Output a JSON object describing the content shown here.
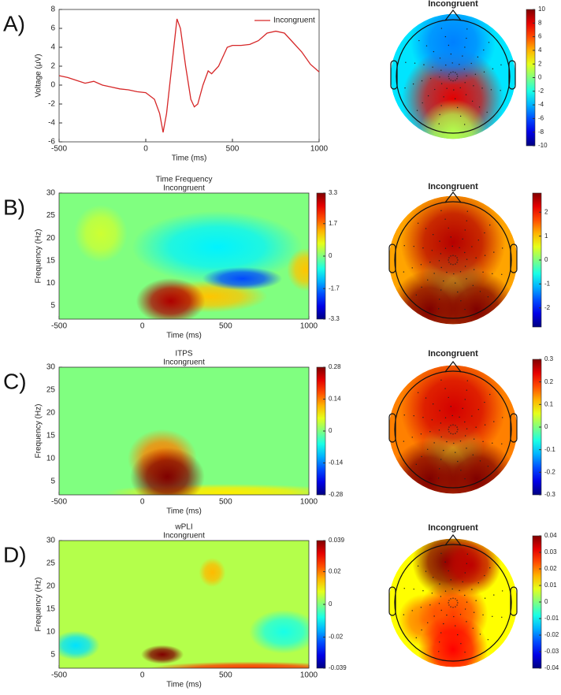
{
  "chart_data": [
    {
      "type": "line",
      "panel": "A)",
      "xlabel": "Time (ms)",
      "ylabel": "Voltage (μV)",
      "x": [
        -500,
        -450,
        -400,
        -350,
        -300,
        -250,
        -200,
        -150,
        -100,
        -50,
        0,
        50,
        80,
        100,
        120,
        150,
        180,
        200,
        230,
        260,
        280,
        300,
        330,
        360,
        380,
        420,
        470,
        500,
        550,
        600,
        650,
        700,
        750,
        800,
        850,
        900,
        950,
        1000
      ],
      "series": [
        {
          "name": "Incongruent",
          "color": "#d62728",
          "values": [
            1,
            0.8,
            0.5,
            0.2,
            0.4,
            0,
            -0.2,
            -0.4,
            -0.5,
            -0.7,
            -0.8,
            -1.5,
            -3,
            -5,
            -3,
            2,
            7,
            6,
            2,
            -1.5,
            -2.3,
            -2,
            0,
            1.5,
            1.2,
            2,
            4,
            4.2,
            4.2,
            4.3,
            4.7,
            5.5,
            5.7,
            5.5,
            4.5,
            3.5,
            2.2,
            1.4
          ]
        }
      ],
      "xlim": [
        -500,
        1000
      ],
      "xticks": [
        -500,
        0,
        500,
        1000
      ],
      "ylim": [
        -6,
        8
      ],
      "yticks": [
        -6,
        -4,
        -2,
        0,
        2,
        4,
        6,
        8
      ],
      "legend": "top-right"
    },
    {
      "type": "topoplot",
      "title": "Incongruent",
      "clim": [
        -10,
        10
      ],
      "cticks": [
        -10,
        -8,
        -6,
        -4,
        -2,
        0,
        2,
        4,
        6,
        8,
        10
      ],
      "background": -3,
      "regions": [
        {
          "x": 0,
          "y": 0.4,
          "r": 0.6,
          "value": 8
        },
        {
          "x": 0,
          "y": -0.6,
          "r": 0.5,
          "value": -5
        },
        {
          "x": 0,
          "y": 1,
          "r": 0.4,
          "value": 1
        }
      ]
    },
    {
      "type": "heatmap",
      "panel": "B)",
      "title": "Time Frequency",
      "subtitle": "Incongruent",
      "xlabel": "Time (ms)",
      "ylabel": "Frequency (Hz)",
      "xlim": [
        -500,
        1000
      ],
      "xticks": [
        -500,
        0,
        500,
        1000
      ],
      "ylim": [
        2,
        30
      ],
      "yticks": [
        5,
        10,
        15,
        20,
        25,
        30
      ],
      "clim": [
        -3.3,
        3.3
      ],
      "cticks": [
        -3.3,
        -1.7,
        0,
        1.7,
        3.3
      ],
      "background": 0,
      "regions": [
        {
          "x": -250,
          "y": 21,
          "rx": 100,
          "ry": 4,
          "value": 0.5
        },
        {
          "x": 450,
          "y": 18,
          "rx": 320,
          "ry": 5,
          "value": -0.9
        },
        {
          "x": 400,
          "y": 7,
          "rx": 220,
          "ry": 2.2,
          "value": 1.2
        },
        {
          "x": 600,
          "y": 11,
          "rx": 150,
          "ry": 1.6,
          "value": -2
        },
        {
          "x": 980,
          "y": 13,
          "rx": 70,
          "ry": 3,
          "value": 1.2
        },
        {
          "x": 170,
          "y": 6,
          "rx": 130,
          "ry": 3.2,
          "value": 3
        }
      ]
    },
    {
      "type": "topoplot",
      "title": "Incongruent",
      "clim": [
        -2.8,
        2.8
      ],
      "cticks": [
        -2,
        -1,
        0,
        1,
        2
      ],
      "background": 1.2,
      "regions": [
        {
          "x": 0,
          "y": 0.25,
          "r": 0.35,
          "value": 0.4
        },
        {
          "x": 0,
          "y": -0.3,
          "r": 0.6,
          "value": 2.5
        },
        {
          "x": -0.4,
          "y": 0.85,
          "r": 0.45,
          "value": 2.8
        },
        {
          "x": 0.4,
          "y": 0.85,
          "r": 0.45,
          "value": 2.8
        }
      ]
    },
    {
      "type": "heatmap",
      "panel": "C)",
      "title": "ITPS",
      "subtitle": "Incongruent",
      "xlabel": "Time (ms)",
      "ylabel": "Frequency (Hz)",
      "xlim": [
        -500,
        1000
      ],
      "xticks": [
        -500,
        0,
        500,
        1000
      ],
      "ylim": [
        2,
        30
      ],
      "yticks": [
        5,
        10,
        15,
        20,
        25,
        30
      ],
      "clim": [
        -0.28,
        0.28
      ],
      "cticks": [
        -0.28,
        -0.14,
        0,
        0.14,
        0.28
      ],
      "background": 0,
      "regions": [
        {
          "x": 500,
          "y": 2.5,
          "rx": 450,
          "ry": 1.2,
          "value": 0.08
        },
        {
          "x": 120,
          "y": 10,
          "rx": 130,
          "ry": 4,
          "value": 0.14
        },
        {
          "x": 150,
          "y": 6,
          "rx": 140,
          "ry": 4,
          "value": 0.28
        }
      ]
    },
    {
      "type": "topoplot",
      "title": "Incongruent",
      "clim": [
        -0.3,
        0.3
      ],
      "cticks": [
        -0.3,
        -0.2,
        -0.1,
        0,
        0.1,
        0.2,
        0.3
      ],
      "background": 0.15,
      "regions": [
        {
          "x": 0,
          "y": 0.3,
          "r": 0.35,
          "value": 0.05
        },
        {
          "x": 0,
          "y": -0.35,
          "r": 0.6,
          "value": 0.25
        },
        {
          "x": -0.4,
          "y": 0.85,
          "r": 0.45,
          "value": 0.3
        },
        {
          "x": 0.4,
          "y": 0.85,
          "r": 0.45,
          "value": 0.3
        }
      ]
    },
    {
      "type": "heatmap",
      "panel": "D)",
      "title": "wPLI",
      "subtitle": "Incongruent",
      "xlabel": "Time (ms)",
      "ylabel": "Frequency (Hz)",
      "xlim": [
        -500,
        1000
      ],
      "xticks": [
        -500,
        0,
        500,
        1000
      ],
      "ylim": [
        2,
        30
      ],
      "yticks": [
        5,
        10,
        15,
        20,
        25,
        30
      ],
      "clim": [
        -0.039,
        0.039
      ],
      "cticks": [
        -0.039,
        -0.02,
        0,
        0.02,
        0.039
      ],
      "background": 0.004,
      "regions": [
        {
          "x": -400,
          "y": 7,
          "rx": 90,
          "ry": 2,
          "value": -0.012
        },
        {
          "x": 850,
          "y": 10,
          "rx": 130,
          "ry": 3,
          "value": -0.008
        },
        {
          "x": 420,
          "y": 23,
          "rx": 50,
          "ry": 2,
          "value": 0.015
        },
        {
          "x": 650,
          "y": 2,
          "rx": 380,
          "ry": 0.9,
          "value": 0.025
        },
        {
          "x": 120,
          "y": 5,
          "rx": 80,
          "ry": 1.3,
          "value": 0.039
        }
      ]
    },
    {
      "type": "topoplot",
      "title": "Incongruent",
      "clim": [
        -0.04,
        0.04
      ],
      "cticks": [
        -0.04,
        -0.03,
        -0.02,
        -0.01,
        0,
        0.01,
        0.02,
        0.03,
        0.04
      ],
      "background": 0.01,
      "regions": [
        {
          "x": -0.5,
          "y": 0.3,
          "r": 0.3,
          "value": 0.02
        },
        {
          "x": 0,
          "y": 0.2,
          "r": 0.4,
          "value": 0.025
        },
        {
          "x": 0,
          "y": 0.8,
          "r": 0.4,
          "value": 0.03
        },
        {
          "x": -0.1,
          "y": -0.7,
          "r": 0.4,
          "value": 0.04
        },
        {
          "x": 0.3,
          "y": -0.65,
          "r": 0.35,
          "value": 0.035
        }
      ]
    }
  ]
}
